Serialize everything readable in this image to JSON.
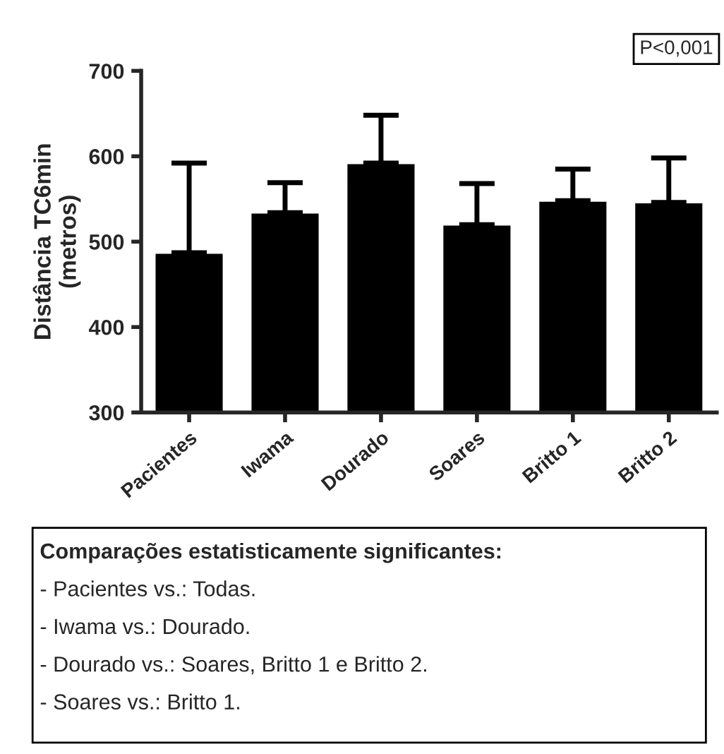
{
  "chart_data": {
    "type": "bar",
    "ylabel": "Distância TC6min\n(metros)",
    "categories": [
      "Pacientes",
      "Iwama",
      "Dourado",
      "Soares",
      "Britto 1",
      "Britto 2"
    ],
    "values": [
      487,
      534,
      592,
      520,
      548,
      546
    ],
    "errors": [
      [
        487,
        592
      ],
      [
        534,
        569
      ],
      [
        592,
        648
      ],
      [
        520,
        568
      ],
      [
        548,
        585
      ],
      [
        546,
        598
      ]
    ],
    "color": "#000000",
    "ylim": [
      300,
      700
    ],
    "yticks": [
      300,
      400,
      500,
      600,
      700
    ],
    "grid": false,
    "annotations": [
      "P<0,001",
      "Comparações estatisticamente significantes:\n- Pacientes vs.: Todas.\n- Iwama vs.: Dourado.\n- Dourado vs.: Soares, Britto 1 e Britto 2.\n- Soares vs.: Britto 1."
    ]
  }
}
